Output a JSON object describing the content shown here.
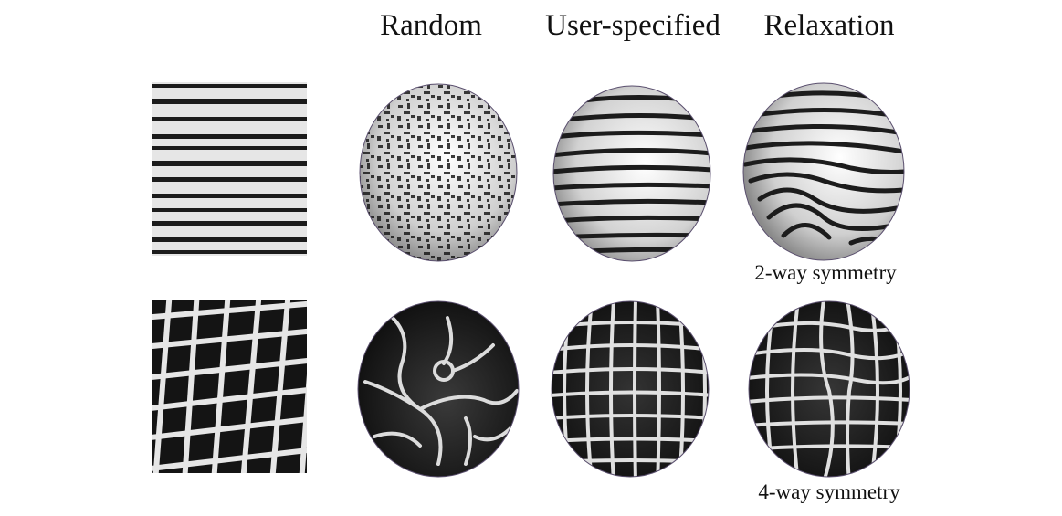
{
  "headers": {
    "random": "Random",
    "user_specified": "User-specified",
    "relaxation": "Relaxation"
  },
  "captions": {
    "row1": "2-way symmetry",
    "row2": "4-way symmetry"
  },
  "colors": {
    "stripe_dark": "#1b1b1b",
    "stripe_light": "#e9e9e9",
    "cell_dark": "#121212",
    "grout_light": "#e8e8e8",
    "sphere_outline": "#5a4f6e"
  }
}
